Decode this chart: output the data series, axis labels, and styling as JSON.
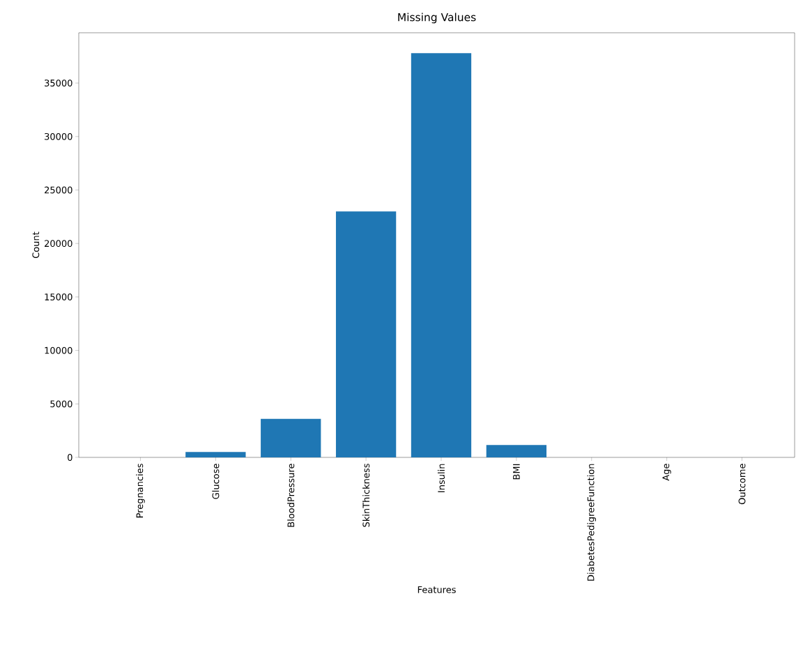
{
  "chart_data": {
    "type": "bar",
    "title": "Missing Values",
    "xlabel": "Features",
    "ylabel": "Count",
    "categories": [
      "Pregnancies",
      "Glucose",
      "BloodPressure",
      "SkinThickness",
      "Insulin",
      "BMI",
      "DiabetesPedigreeFunction",
      "Age",
      "Outcome"
    ],
    "values": [
      0,
      500,
      3600,
      23000,
      37800,
      1150,
      0,
      0,
      0
    ],
    "color": "#1f77b4",
    "ylim": [
      0,
      39700
    ],
    "yticks": [
      0,
      5000,
      10000,
      15000,
      20000,
      25000,
      30000,
      35000
    ]
  }
}
